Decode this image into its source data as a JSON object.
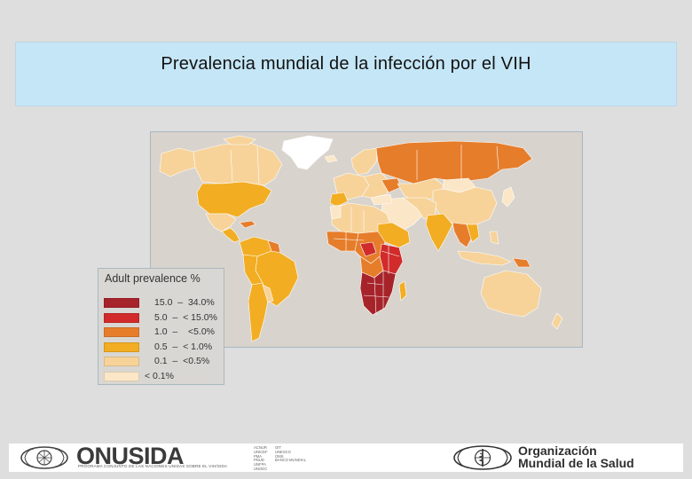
{
  "title": "Prevalencia mundial de la infección por el VIH",
  "legend": {
    "title": "Adult prevalence %",
    "items": [
      {
        "range": "15.0  –  34.0%",
        "color": "#a7232a"
      },
      {
        "range": "5.0  –  < 15.0%",
        "color": "#d12b2b"
      },
      {
        "range": "1.0  –    <5.0%",
        "color": "#e67d2b"
      },
      {
        "range": "0.5  –  < 1.0%",
        "color": "#f2ad22"
      },
      {
        "range": "0.1  –  <0.5%",
        "color": "#f7d39a"
      },
      {
        "range": "< 0.1%",
        "color": "#fbe7c7"
      }
    ]
  },
  "footer": {
    "onusida_logo": "ONUSIDA",
    "onusida_subtitle": "PROGRAMA CONJUNTO DE LAS NACIONES UNIDAS SOBRE EL VIH/SIDA",
    "agencies_col1": "ACNUR\nUNICEF\nPMA\nPNUD\nUNFPA\nUNODC",
    "agencies_col2": "OIT\nUNESCO\nOMS\nBANCO MUNDIAL",
    "oms_line1": "Organización",
    "oms_line2": "Mundial de la Salud"
  },
  "map_colors": {
    "water": "#d8d3cc",
    "greenland": "#ffffff",
    "borders": "#ffffff"
  }
}
